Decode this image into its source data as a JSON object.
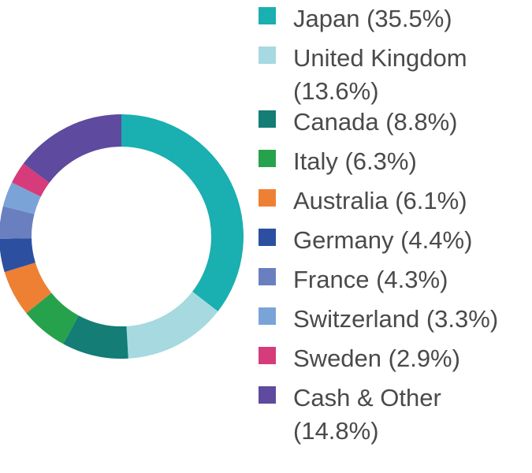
{
  "chart_data": {
    "type": "pie",
    "title": "",
    "slices": [
      {
        "label": "Japan (35.5%)",
        "name": "Japan",
        "value": 35.5,
        "color": "#1aafb0"
      },
      {
        "label": "United Kingdom (13.6%)",
        "name": "United Kingdom",
        "value": 13.6,
        "color": "#a6d9e0"
      },
      {
        "label": "Canada (8.8%)",
        "name": "Canada",
        "value": 8.8,
        "color": "#137d76"
      },
      {
        "label": "Italy (6.3%)",
        "name": "Italy",
        "value": 6.3,
        "color": "#27a24c"
      },
      {
        "label": "Australia (6.1%)",
        "name": "Australia",
        "value": 6.1,
        "color": "#ee8034"
      },
      {
        "label": "Germany (4.4%)",
        "name": "Germany",
        "value": 4.4,
        "color": "#2c4fa0"
      },
      {
        "label": "France (4.3%)",
        "name": "France",
        "value": 4.3,
        "color": "#6a7fc0"
      },
      {
        "label": "Switzerland (3.3%)",
        "name": "Switzerland",
        "value": 3.3,
        "color": "#7aa3d8"
      },
      {
        "label": "Sweden (2.9%)",
        "name": "Sweden",
        "value": 2.9,
        "color": "#d63b7a"
      },
      {
        "label": "Cash & Other (14.8%)",
        "name": "Cash & Other",
        "value": 14.8,
        "color": "#5e4a9e"
      }
    ],
    "legend_position": "right"
  }
}
